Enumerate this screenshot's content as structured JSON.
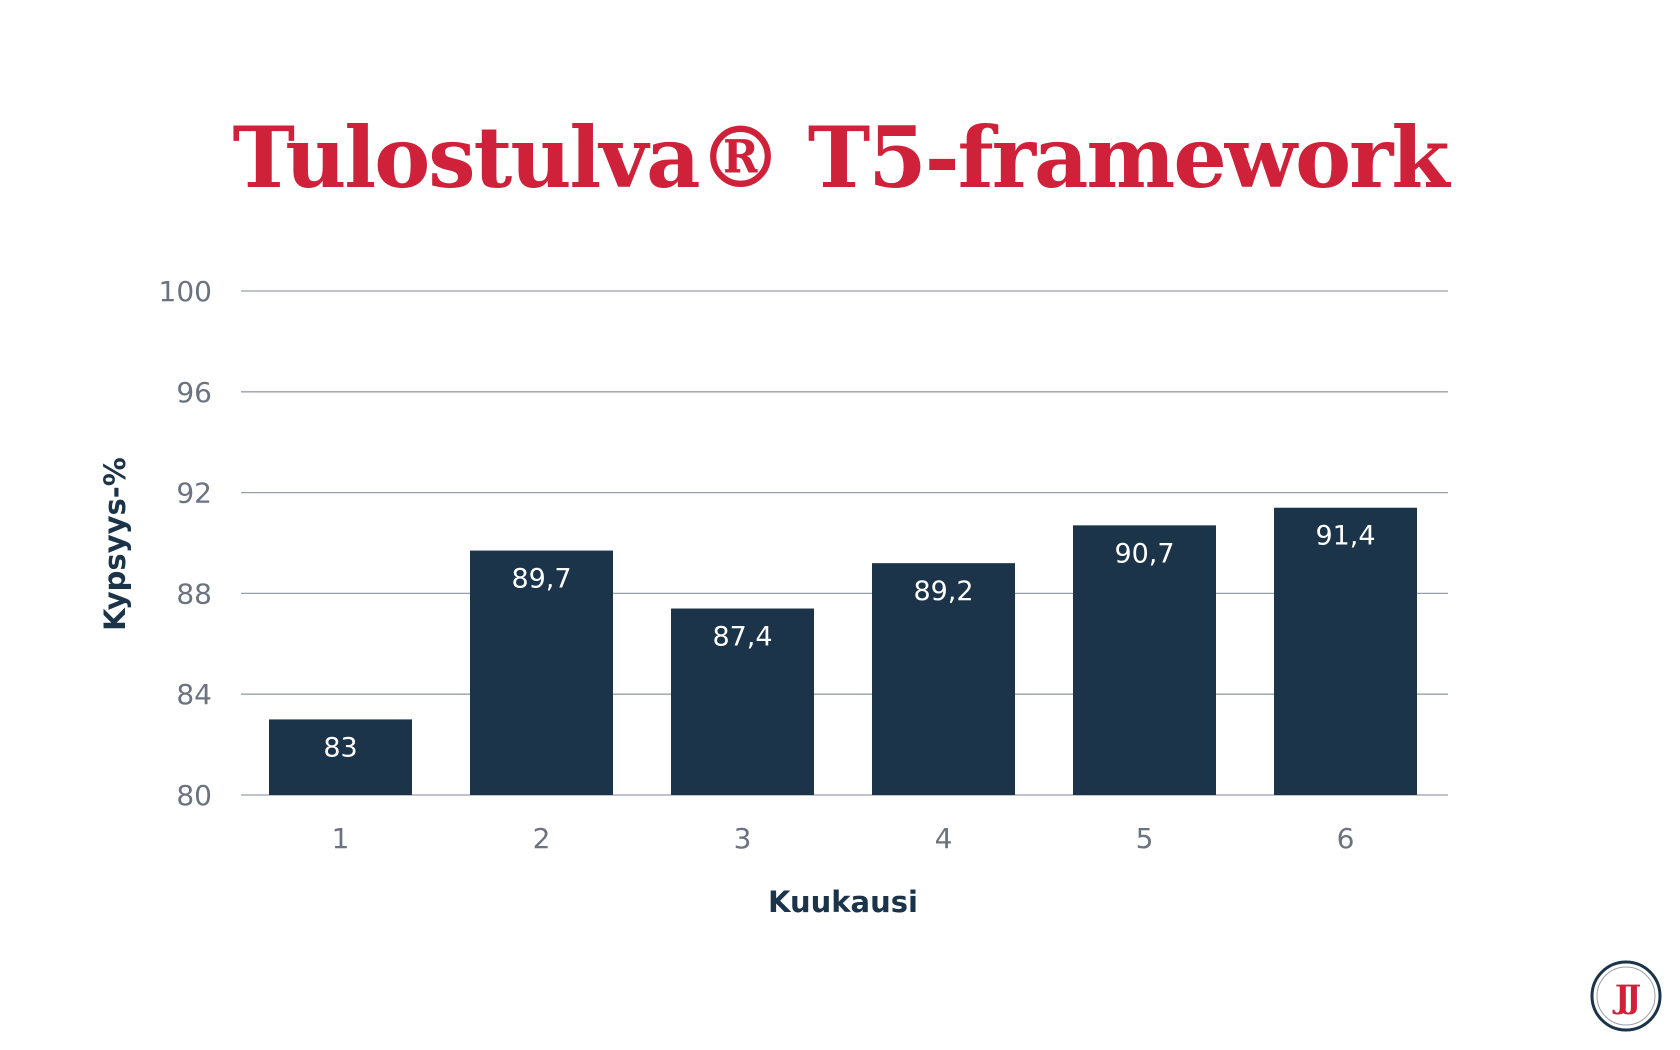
{
  "title": "Tulostulva® T5-framework",
  "colors": {
    "title": "#d0213a",
    "bar": "#1c344a",
    "grid": "#9aa0aa",
    "tick": "#6b7280",
    "axis_label": "#1c344a"
  },
  "logo": {
    "text": "JJ",
    "ring_color": "#1c344a",
    "letter_color": "#d0213a"
  },
  "chart_data": {
    "type": "bar",
    "categories": [
      "1",
      "2",
      "3",
      "4",
      "5",
      "6"
    ],
    "values": [
      83,
      89.7,
      87.4,
      89.2,
      90.7,
      91.4
    ],
    "data_labels": [
      "83",
      "89,7",
      "87,4",
      "89,2",
      "90,7",
      "91,4"
    ],
    "title": "Tulostulva® T5-framework",
    "xlabel": "Kuukausi",
    "ylabel": "Kypsyys-%",
    "ylim": [
      80,
      100
    ],
    "yticks": [
      80,
      84,
      88,
      92,
      96,
      100
    ],
    "grid": true
  }
}
